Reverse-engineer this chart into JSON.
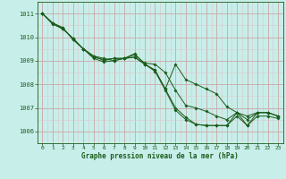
{
  "xlabel": "Graphe pression niveau de la mer (hPa)",
  "ylim": [
    1005.5,
    1011.5
  ],
  "xlim": [
    -0.5,
    23.5
  ],
  "yticks_major": [
    1006,
    1007,
    1008,
    1009,
    1010,
    1011
  ],
  "yticks_minor_step": 0.5,
  "xticks": [
    0,
    1,
    2,
    3,
    4,
    5,
    6,
    7,
    8,
    9,
    10,
    11,
    12,
    13,
    14,
    15,
    16,
    17,
    18,
    19,
    20,
    21,
    22,
    23
  ],
  "bg_color": "#c8eeea",
  "grid_color_major": "#c8a8a8",
  "grid_color_minor": "#ddc8c8",
  "line_color": "#1a5c1a",
  "series": [
    [
      1011.0,
      1010.6,
      1010.4,
      1009.9,
      1009.5,
      1009.2,
      1009.0,
      1009.1,
      1009.1,
      1009.3,
      1008.85,
      1008.55,
      1007.75,
      1006.9,
      1006.5,
      1006.3,
      1006.25,
      1006.25,
      1006.25,
      1006.8,
      1006.25,
      1006.8,
      1006.8,
      1006.65
    ],
    [
      1011.0,
      1010.6,
      1010.4,
      1009.9,
      1009.5,
      1009.2,
      1009.1,
      1009.0,
      1009.1,
      1009.15,
      1008.85,
      1008.6,
      1007.8,
      1008.85,
      1008.2,
      1008.0,
      1007.8,
      1007.6,
      1007.05,
      1006.8,
      1006.65,
      1006.8,
      1006.8,
      1006.65
    ],
    [
      1011.0,
      1010.6,
      1010.35,
      1009.95,
      1009.5,
      1009.15,
      1009.05,
      1009.1,
      1009.1,
      1009.25,
      1008.9,
      1008.85,
      1008.5,
      1007.75,
      1007.1,
      1007.0,
      1006.85,
      1006.65,
      1006.5,
      1006.8,
      1006.5,
      1006.8,
      1006.8,
      1006.65
    ],
    [
      1011.0,
      1010.55,
      1010.35,
      1009.95,
      1009.5,
      1009.1,
      1008.95,
      1009.0,
      1009.1,
      1009.15,
      1008.85,
      1008.6,
      1007.8,
      1007.0,
      1006.6,
      1006.3,
      1006.25,
      1006.25,
      1006.25,
      1006.65,
      1006.25,
      1006.65,
      1006.65,
      1006.55
    ]
  ]
}
